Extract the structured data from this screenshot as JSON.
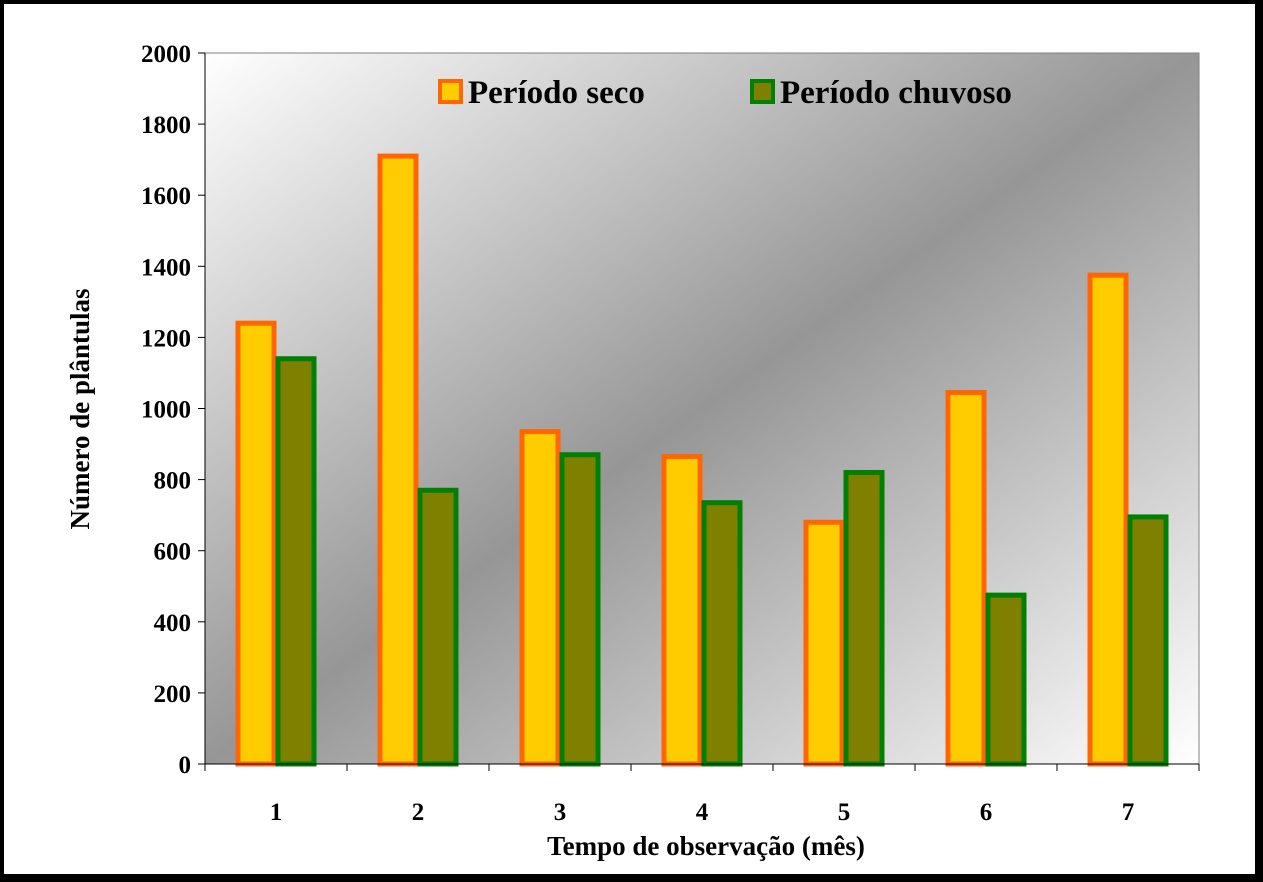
{
  "chart_data": {
    "type": "bar",
    "categories": [
      "1",
      "2",
      "3",
      "4",
      "5",
      "6",
      "7"
    ],
    "series": [
      {
        "name": "Período seco",
        "values": [
          1240,
          1710,
          935,
          865,
          680,
          1045,
          1375
        ],
        "fill": "#FFCC00",
        "stroke": "#FF6600"
      },
      {
        "name": "Período chuvoso",
        "values": [
          1140,
          770,
          870,
          735,
          820,
          475,
          695
        ],
        "fill": "#808000",
        "stroke": "#008000"
      }
    ],
    "xlabel": "Tempo de observação (mês)",
    "ylabel": "Número de plântulas",
    "ylim": [
      0,
      2000
    ],
    "yticks": [
      "0",
      "200",
      "400",
      "600",
      "800",
      "1000",
      "1200",
      "1400",
      "1600",
      "1800",
      "2000"
    ],
    "legend": "top-inside",
    "grid": false
  }
}
